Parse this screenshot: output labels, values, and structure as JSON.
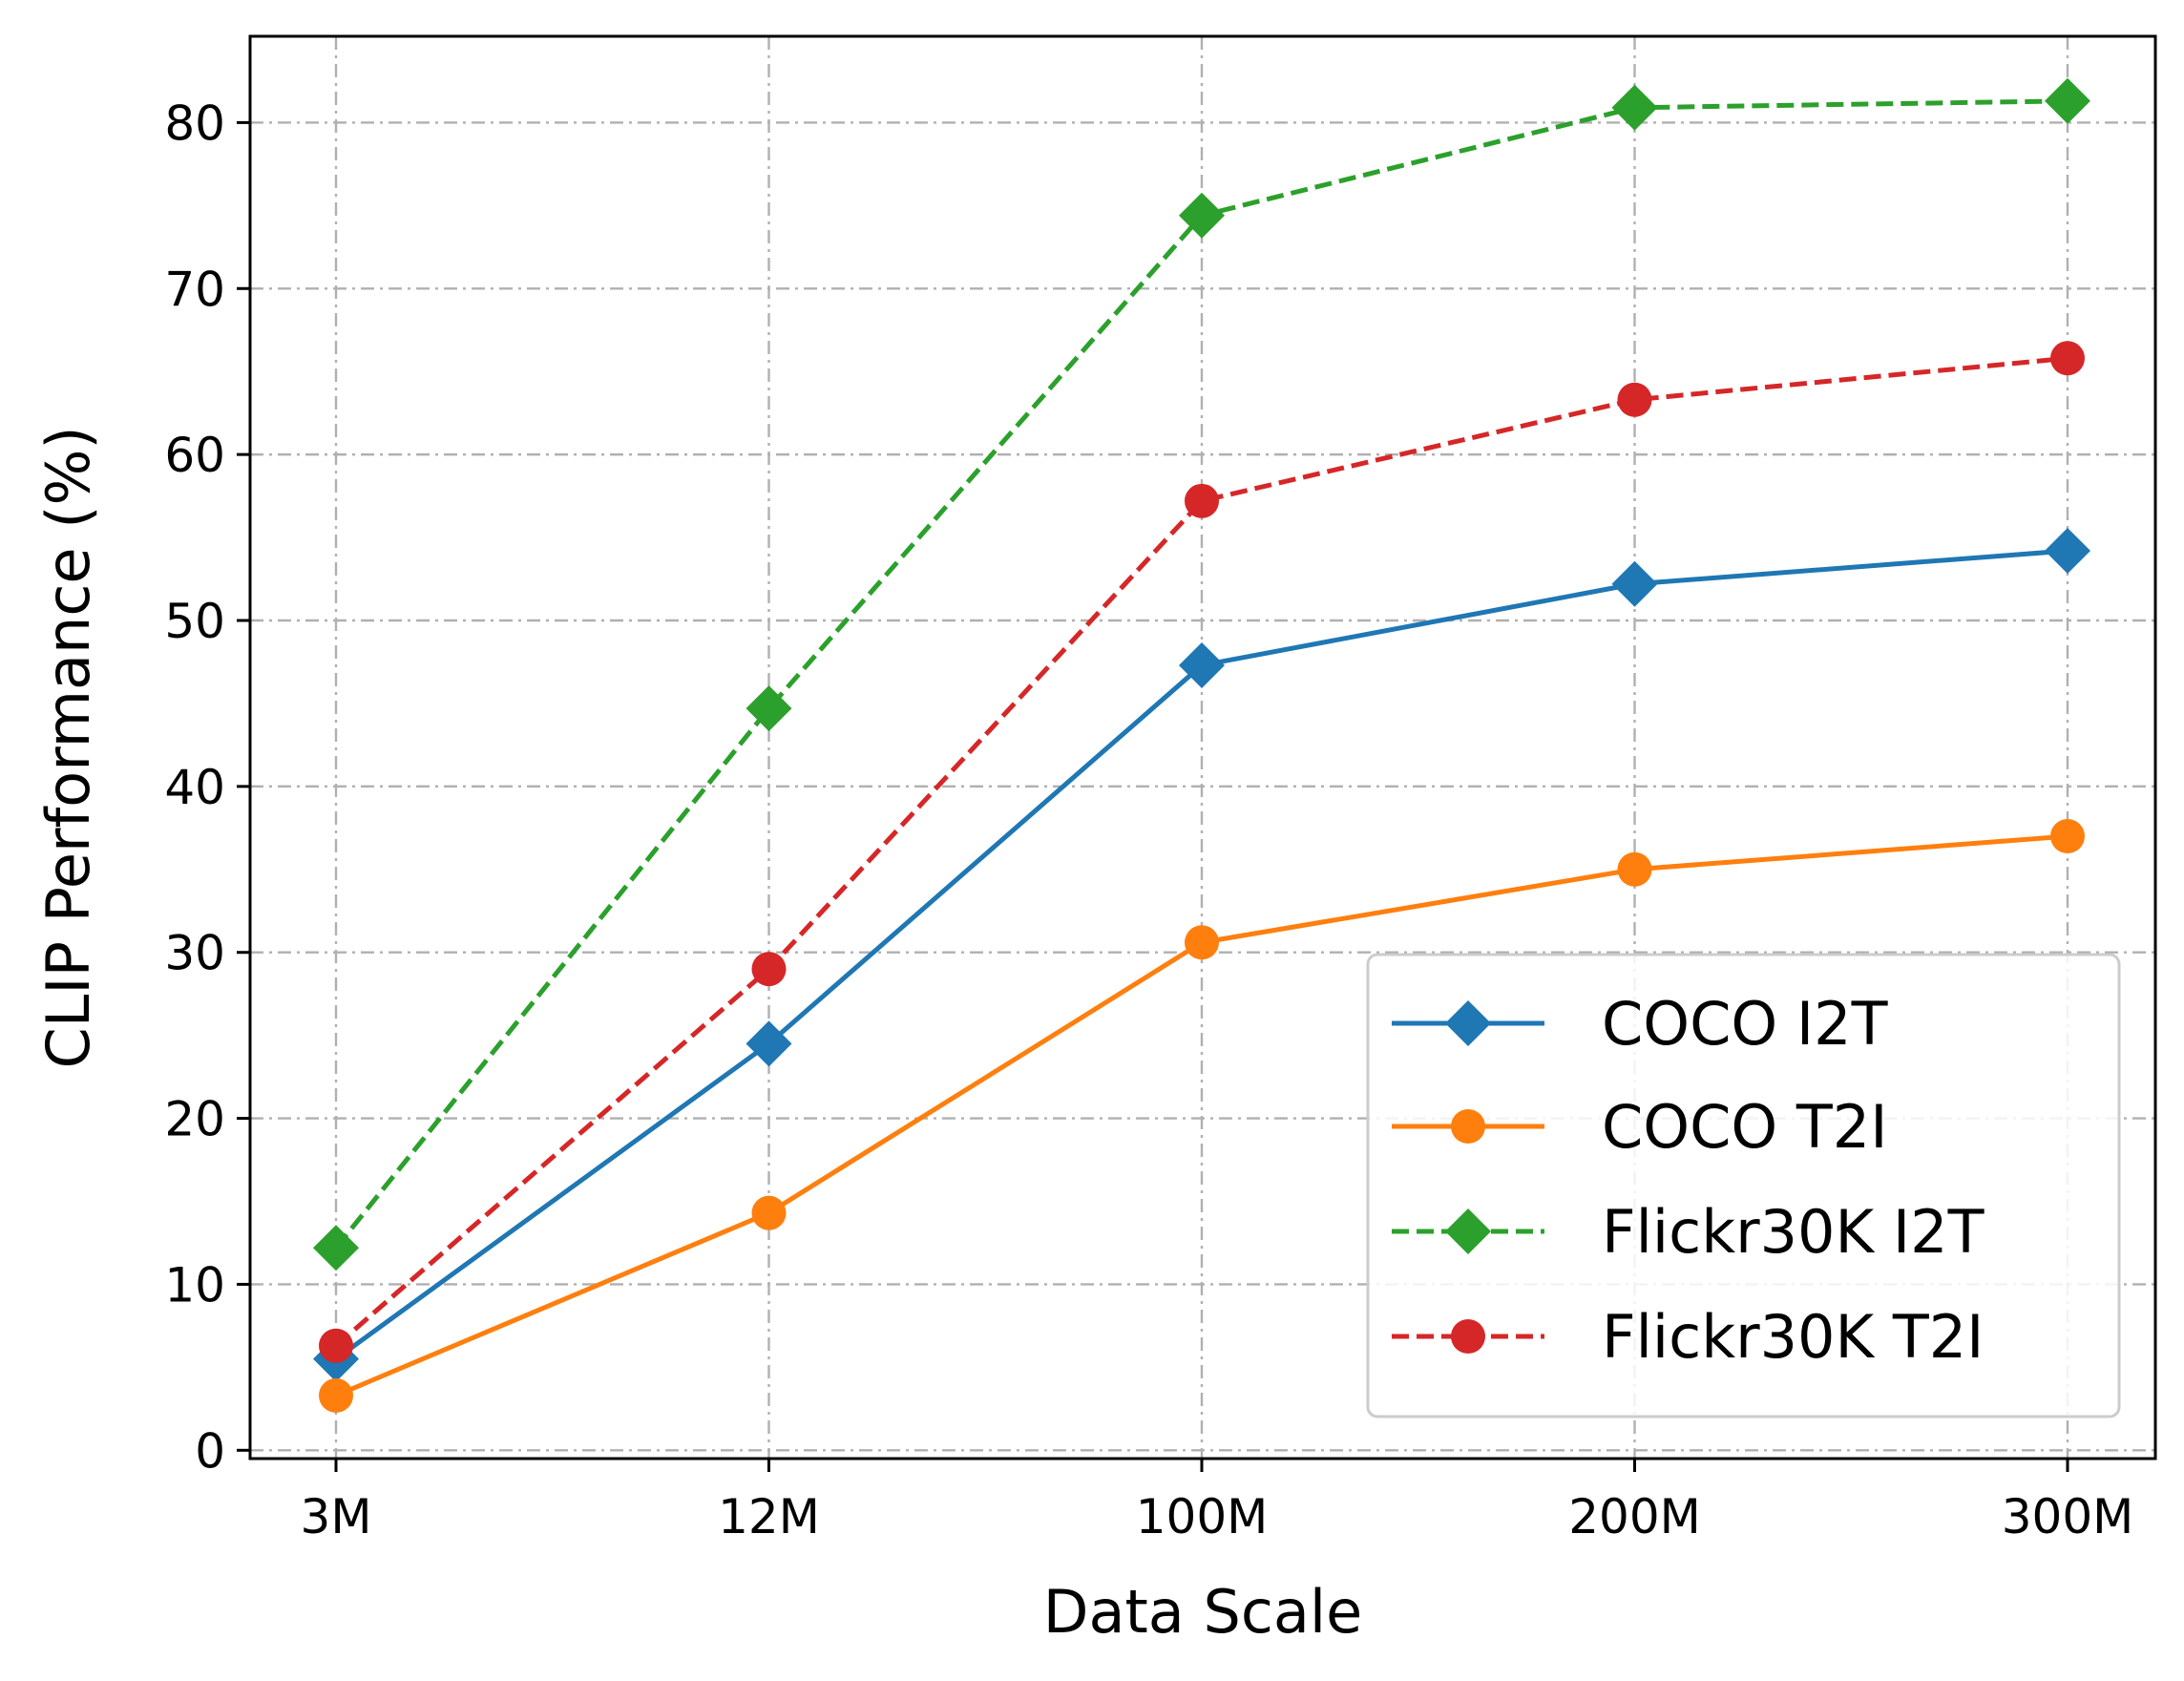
{
  "chart_data": {
    "type": "line",
    "title": "",
    "xlabel": "Data Scale",
    "ylabel": "CLIP Performance (%)",
    "categories": [
      "3M",
      "12M",
      "100M",
      "200M",
      "300M"
    ],
    "yticks": [
      "0",
      "10",
      "20",
      "30",
      "40",
      "50",
      "60",
      "70",
      "80"
    ],
    "ylim": [
      -0.5,
      85.2
    ],
    "grid": true,
    "legend_position": "lower-right",
    "series": [
      {
        "name": "COCO I2T",
        "values": [
          5.5,
          24.5,
          47.3,
          52.2,
          54.2
        ],
        "color": "#1f77b4",
        "marker": "diamond",
        "linestyle": "solid"
      },
      {
        "name": "COCO T2I",
        "values": [
          3.3,
          14.3,
          30.6,
          35.0,
          37.0
        ],
        "color": "#ff7f0e",
        "marker": "circle",
        "linestyle": "solid"
      },
      {
        "name": "Flickr30K I2T",
        "values": [
          12.2,
          44.7,
          74.4,
          80.9,
          81.3
        ],
        "color": "#2ca02c",
        "marker": "diamond",
        "linestyle": "dashed"
      },
      {
        "name": "Flickr30K T2I",
        "values": [
          6.3,
          29.0,
          57.2,
          63.3,
          65.8
        ],
        "color": "#d62728",
        "marker": "circle",
        "linestyle": "dashed"
      }
    ]
  }
}
